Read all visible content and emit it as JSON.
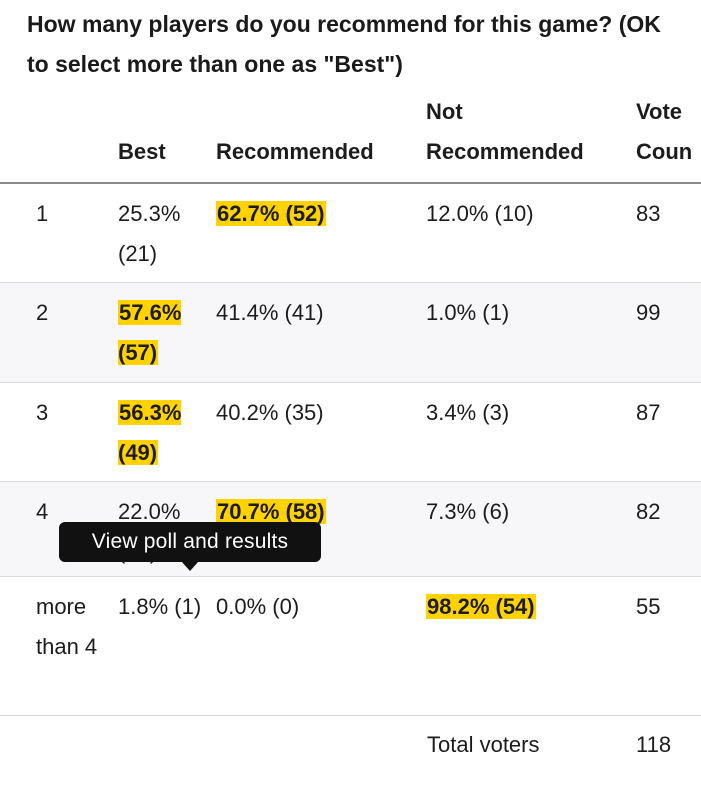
{
  "question": "How many players do you recommend for this game? (OK to select more than one as \"Best\")",
  "headers": {
    "best": "Best",
    "recommended": "Recommended",
    "not_recommended_line1": "Not",
    "not_recommended_line2": "Recommended",
    "vote_count_line1": "Vote",
    "vote_count_line2": "Coun"
  },
  "rows": [
    {
      "players": "1",
      "best": "25.3% (21)",
      "recommended": "62.7% (52)",
      "not_recommended": "12.0% (10)",
      "vote_count": "83",
      "highlight": "recommended"
    },
    {
      "players": "2",
      "best": "57.6% (57)",
      "recommended": "41.4% (41)",
      "not_recommended": "1.0% (1)",
      "vote_count": "99",
      "highlight": "best"
    },
    {
      "players": "3",
      "best": "56.3% (49)",
      "recommended": "40.2% (35)",
      "not_recommended": "3.4% (3)",
      "vote_count": "87",
      "highlight": "best"
    },
    {
      "players": "4",
      "best": "22.0% (18)",
      "recommended": "70.7% (58)",
      "not_recommended": "7.3% (6)",
      "vote_count": "82",
      "highlight": "recommended"
    },
    {
      "players": "more than 4",
      "best": "1.8% (1)",
      "recommended": "0.0% (0)",
      "not_recommended": "98.2% (54)",
      "vote_count": "55",
      "highlight": "not_recommended"
    }
  ],
  "total": {
    "label": "Total voters",
    "value": "118"
  },
  "tooltip": "View poll and results",
  "colors": {
    "highlight": "#ffd200",
    "tooltip_bg": "#111111",
    "row_alt": "#f7f7f9"
  }
}
